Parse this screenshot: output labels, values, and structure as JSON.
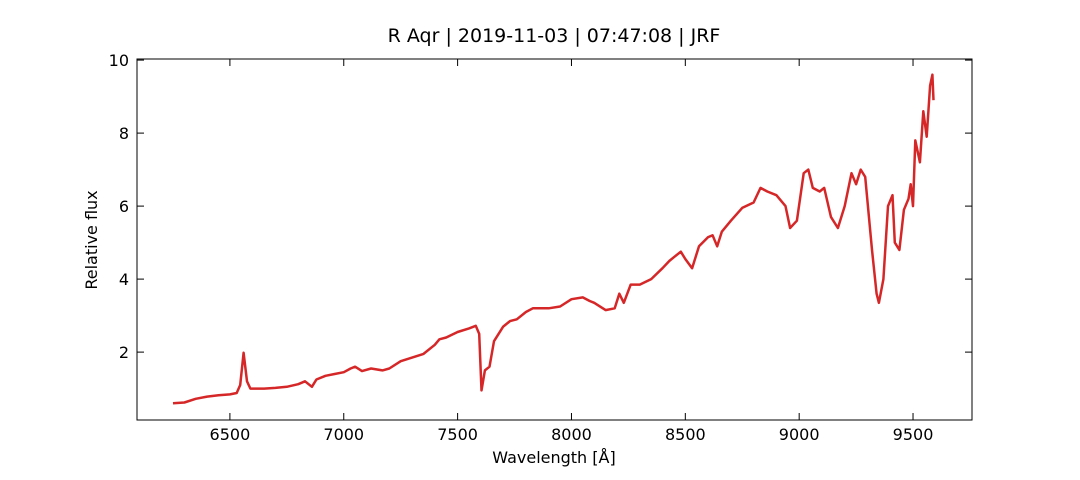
{
  "chart_data": {
    "type": "line",
    "title": "R Aqr | 2019-11-03 | 07:47:08 | JRF",
    "x_label": "Wavelength [Å]",
    "y_label": "Relative flux",
    "xlim": [
      6092,
      9759
    ],
    "ylim": [
      0.14,
      10.03
    ],
    "xticks": [
      6500,
      7000,
      7500,
      8000,
      8500,
      9000,
      9500
    ],
    "yticks": [
      2,
      4,
      6,
      8,
      10
    ],
    "series": [
      {
        "name": "R Aqr",
        "color": "#d62728",
        "x": [
          6250,
          6300,
          6350,
          6400,
          6450,
          6500,
          6530,
          6545,
          6560,
          6575,
          6590,
          6650,
          6700,
          6750,
          6800,
          6830,
          6860,
          6880,
          6920,
          6960,
          7000,
          7030,
          7050,
          7080,
          7120,
          7170,
          7200,
          7250,
          7300,
          7350,
          7400,
          7420,
          7450,
          7500,
          7550,
          7580,
          7595,
          7605,
          7620,
          7640,
          7660,
          7700,
          7730,
          7760,
          7800,
          7830,
          7870,
          7900,
          7950,
          8000,
          8050,
          8080,
          8100,
          8150,
          8190,
          8210,
          8230,
          8260,
          8300,
          8350,
          8400,
          8430,
          8450,
          8480,
          8500,
          8530,
          8560,
          8600,
          8620,
          8640,
          8660,
          8700,
          8750,
          8800,
          8830,
          8860,
          8900,
          8940,
          8960,
          8990,
          9020,
          9040,
          9060,
          9090,
          9110,
          9140,
          9170,
          9200,
          9230,
          9250,
          9270,
          9290,
          9320,
          9340,
          9350,
          9370,
          9390,
          9410,
          9420,
          9440,
          9460,
          9480,
          9490,
          9500,
          9510,
          9530,
          9545,
          9560,
          9575,
          9585,
          9590
        ],
        "values": [
          0.6,
          0.62,
          0.72,
          0.78,
          0.82,
          0.84,
          0.88,
          1.1,
          1.98,
          1.2,
          1.0,
          1.0,
          1.02,
          1.05,
          1.12,
          1.2,
          1.05,
          1.25,
          1.35,
          1.4,
          1.45,
          1.55,
          1.6,
          1.48,
          1.55,
          1.5,
          1.55,
          1.75,
          1.85,
          1.95,
          2.2,
          2.35,
          2.4,
          2.55,
          2.65,
          2.72,
          2.5,
          0.95,
          1.5,
          1.6,
          2.3,
          2.7,
          2.85,
          2.9,
          3.1,
          3.2,
          3.2,
          3.2,
          3.25,
          3.45,
          3.5,
          3.4,
          3.35,
          3.15,
          3.2,
          3.6,
          3.35,
          3.85,
          3.85,
          4.0,
          4.3,
          4.5,
          4.6,
          4.75,
          4.55,
          4.3,
          4.9,
          5.15,
          5.2,
          4.9,
          5.3,
          5.6,
          5.95,
          6.1,
          6.5,
          6.4,
          6.3,
          6.0,
          5.4,
          5.6,
          6.9,
          7.0,
          6.5,
          6.4,
          6.5,
          5.7,
          5.4,
          6.0,
          6.9,
          6.6,
          7.0,
          6.8,
          4.8,
          3.6,
          3.35,
          4.0,
          6.0,
          6.3,
          5.0,
          4.8,
          5.9,
          6.2,
          6.6,
          6.0,
          7.8,
          7.2,
          8.6,
          7.9,
          9.3,
          9.6,
          8.9
        ]
      }
    ]
  }
}
